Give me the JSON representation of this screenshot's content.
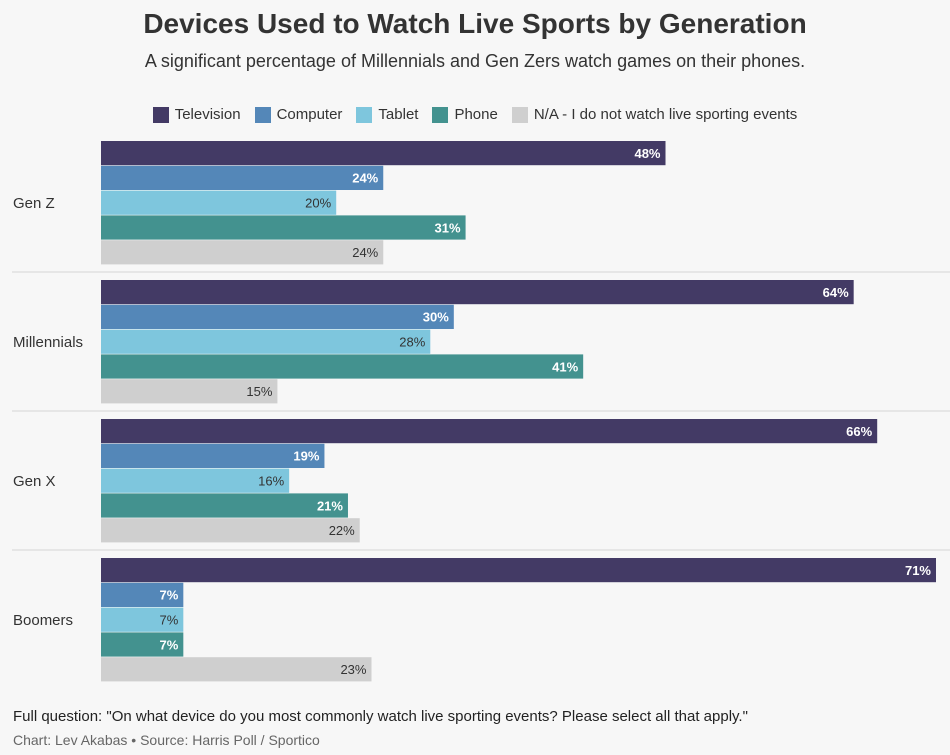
{
  "title": "Devices Used to Watch Live Sports by Generation",
  "subtitle": "A significant percentage of Millennials and Gen Zers watch games on their phones.",
  "footnote": "Full question: \"On what device do you most commonly watch live sporting events? Please select all that apply.\"",
  "credit": "Chart: Lev Akabas • Source: Harris Poll / Sportico",
  "chart_data": {
    "type": "bar",
    "orientation": "horizontal",
    "title": "Devices Used to Watch Live Sports by Generation",
    "xlabel": "",
    "ylabel": "",
    "xlim": [
      0,
      71
    ],
    "categories": [
      "Gen Z",
      "Millennials",
      "Gen X",
      "Boomers"
    ],
    "series": [
      {
        "name": "Television",
        "color": "#433a65",
        "label_color": "#ffffff",
        "values": [
          48,
          64,
          66,
          71
        ]
      },
      {
        "name": "Computer",
        "color": "#5487b8",
        "label_color": "#ffffff",
        "values": [
          24,
          30,
          19,
          7
        ]
      },
      {
        "name": "Tablet",
        "color": "#7ec6dd",
        "label_color": "#333333",
        "values": [
          20,
          28,
          16,
          7
        ]
      },
      {
        "name": "Phone",
        "color": "#43928f",
        "label_color": "#ffffff",
        "values": [
          31,
          41,
          21,
          7
        ]
      },
      {
        "name": "N/A - I do not watch live sporting events",
        "color": "#cfcfcf",
        "label_color": "#333333",
        "values": [
          24,
          15,
          22,
          23
        ]
      }
    ],
    "value_suffix": "%"
  }
}
